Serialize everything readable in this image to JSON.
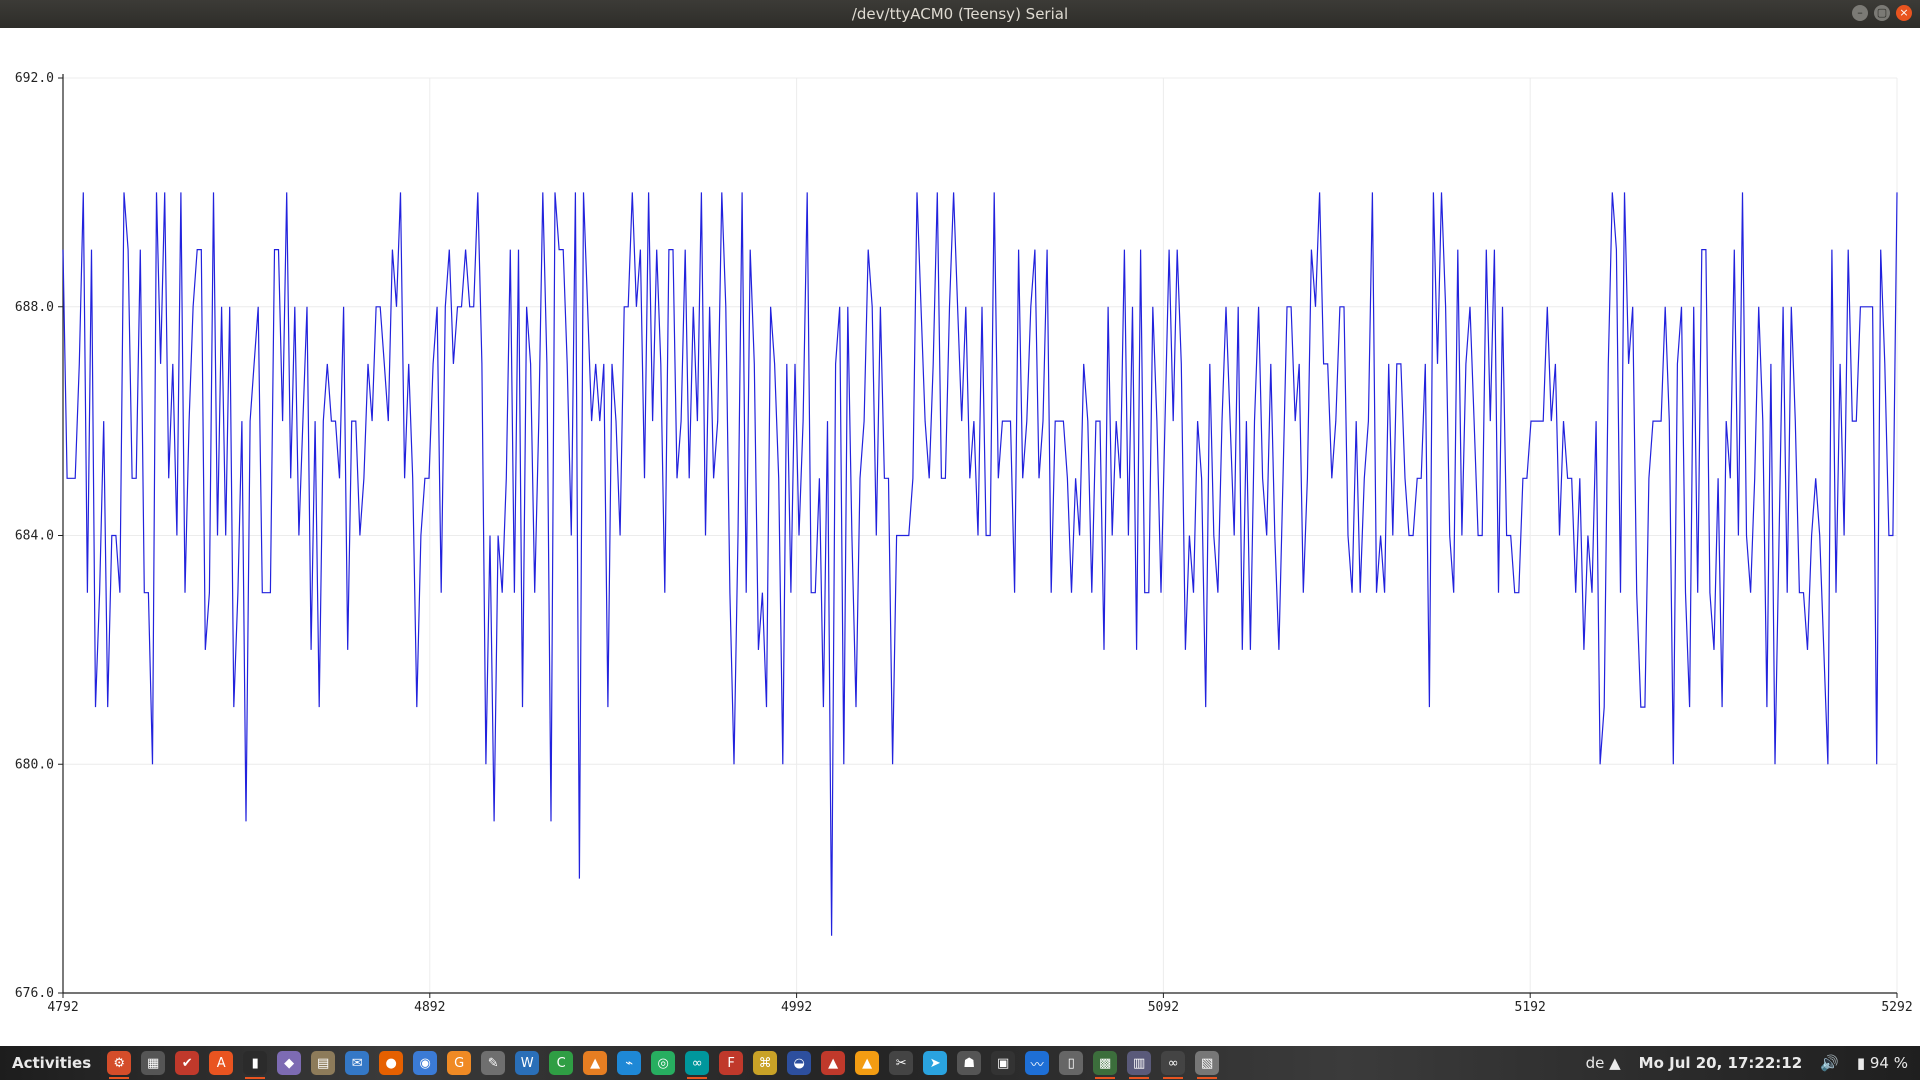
{
  "window": {
    "title": "/dev/ttyACM0 (Teensy) Serial",
    "controls": [
      "–",
      "▢",
      "×"
    ]
  },
  "chart_data": {
    "type": "line",
    "x_start": 4792,
    "x_end": 5292,
    "xlim": [
      4792,
      5292
    ],
    "ylim": [
      676.0,
      692.0
    ],
    "xticks": [
      "4792",
      "4892",
      "4992",
      "5092",
      "5192",
      "5292"
    ],
    "yticks": [
      "692.0",
      "688.0",
      "684.0",
      "680.0",
      "676.0"
    ],
    "grid": true,
    "line_color": "#2222dd",
    "values": [
      689,
      685,
      685,
      685,
      687,
      690,
      683,
      689,
      681,
      683,
      686,
      681,
      684,
      684,
      683,
      690,
      689,
      685,
      685,
      689,
      683,
      683,
      680,
      690,
      687,
      690,
      685,
      687,
      684,
      690,
      683,
      686,
      688,
      689,
      689,
      682,
      683,
      690,
      684,
      688,
      684,
      688,
      681,
      683,
      686,
      679,
      686,
      687,
      688,
      683,
      683,
      683,
      689,
      689,
      686,
      690,
      685,
      688,
      684,
      686,
      688,
      682,
      686,
      681,
      686,
      687,
      686,
      686,
      685,
      688,
      682,
      686,
      686,
      684,
      685,
      687,
      686,
      688,
      688,
      687,
      686,
      689,
      688,
      690,
      685,
      687,
      685,
      681,
      684,
      685,
      685,
      687,
      688,
      683,
      688,
      689,
      687,
      688,
      688,
      689,
      688,
      688,
      690,
      687,
      680,
      684,
      679,
      684,
      683,
      685,
      689,
      683,
      689,
      681,
      688,
      687,
      683,
      686,
      690,
      687,
      679,
      690,
      689,
      689,
      687,
      684,
      690,
      678,
      690,
      688,
      686,
      687,
      686,
      687,
      681,
      687,
      686,
      684,
      688,
      688,
      690,
      688,
      689,
      685,
      690,
      686,
      689,
      687,
      683,
      689,
      689,
      685,
      686,
      689,
      685,
      688,
      686,
      690,
      684,
      688,
      685,
      686,
      690,
      688,
      683,
      680,
      684,
      690,
      683,
      689,
      687,
      682,
      683,
      681,
      688,
      687,
      685,
      680,
      687,
      683,
      687,
      684,
      686,
      690,
      683,
      683,
      685,
      681,
      686,
      677,
      687,
      688,
      680,
      688,
      684,
      681,
      685,
      686,
      689,
      688,
      684,
      688,
      685,
      685,
      680,
      684,
      684,
      684,
      684,
      685,
      690,
      688,
      686,
      685,
      687,
      690,
      685,
      685,
      688,
      690,
      688,
      686,
      688,
      685,
      686,
      684,
      688,
      684,
      684,
      690,
      685,
      686,
      686,
      686,
      683,
      689,
      685,
      686,
      688,
      689,
      685,
      686,
      689,
      683,
      686,
      686,
      686,
      685,
      683,
      685,
      684,
      687,
      686,
      683,
      686,
      686,
      682,
      688,
      684,
      686,
      685,
      689,
      684,
      688,
      682,
      689,
      683,
      683,
      688,
      686,
      683,
      686,
      689,
      686,
      689,
      687,
      682,
      684,
      683,
      686,
      685,
      681,
      687,
      684,
      683,
      686,
      688,
      686,
      684,
      688,
      682,
      686,
      682,
      686,
      688,
      685,
      684,
      687,
      684,
      682,
      685,
      688,
      688,
      686,
      687,
      683,
      685,
      689,
      688,
      690,
      687,
      687,
      685,
      686,
      688,
      688,
      684,
      683,
      686,
      683,
      685,
      686,
      690,
      683,
      684,
      683,
      687,
      684,
      687,
      687,
      685,
      684,
      684,
      685,
      685,
      687,
      681,
      690,
      687,
      690,
      688,
      684,
      683,
      689,
      684,
      687,
      688,
      686,
      684,
      684,
      689,
      686,
      689,
      683,
      688,
      684,
      684,
      683,
      683,
      685,
      685,
      686,
      686,
      686,
      686,
      688,
      686,
      687,
      684,
      686,
      685,
      685,
      683,
      685,
      682,
      684,
      683,
      686,
      680,
      681,
      687,
      690,
      689,
      683,
      690,
      687,
      688,
      683,
      681,
      681,
      685,
      686,
      686,
      686,
      688,
      686,
      680,
      687,
      688,
      683,
      681,
      688,
      683,
      689,
      689,
      683,
      682,
      685,
      681,
      686,
      685,
      689,
      684,
      690,
      684,
      683,
      685,
      688,
      686,
      681,
      687,
      680,
      684,
      688,
      683,
      688,
      686,
      683,
      683,
      682,
      684,
      685,
      684,
      682,
      680,
      689,
      683,
      687,
      684,
      689,
      686,
      686,
      688,
      688,
      688,
      688,
      680,
      689,
      687,
      684,
      684,
      690
    ],
    "title": "",
    "xlabel": "",
    "ylabel": ""
  },
  "taskbar": {
    "activities": "Activities",
    "apps": [
      {
        "name": "settings-icon",
        "glyph": "⚙",
        "color": "#d44d2a",
        "running": true
      },
      {
        "name": "calculator-icon",
        "glyph": "▦",
        "color": "#555555",
        "running": false
      },
      {
        "name": "todo-icon",
        "glyph": "✔",
        "color": "#c0392b",
        "running": false
      },
      {
        "name": "software-icon",
        "glyph": "A",
        "color": "#e95420",
        "running": false
      },
      {
        "name": "terminal-icon",
        "glyph": "▮",
        "color": "#2b2b2b",
        "running": true
      },
      {
        "name": "crystal-icon",
        "glyph": "◆",
        "color": "#7d6bb3",
        "running": false
      },
      {
        "name": "files-icon",
        "glyph": "▤",
        "color": "#8d7b5a",
        "running": false
      },
      {
        "name": "mail-icon",
        "glyph": "✉",
        "color": "#3478c6",
        "running": false
      },
      {
        "name": "firefox-icon",
        "glyph": "●",
        "color": "#e66000",
        "running": false
      },
      {
        "name": "chromium-icon",
        "glyph": "◉",
        "color": "#3b7bd6",
        "running": false
      },
      {
        "name": "sync-icon",
        "glyph": "G",
        "color": "#f08a24",
        "running": false
      },
      {
        "name": "editor-icon",
        "glyph": "✎",
        "color": "#6f6f6f",
        "running": false
      },
      {
        "name": "writer-icon",
        "glyph": "W",
        "color": "#2a6fb8",
        "running": false
      },
      {
        "name": "calc-icon",
        "glyph": "C",
        "color": "#2f9e44",
        "running": false
      },
      {
        "name": "blocks-icon",
        "glyph": "▲",
        "color": "#e67e22",
        "running": false
      },
      {
        "name": "vscode-icon",
        "glyph": "⌁",
        "color": "#1e88d6",
        "running": false
      },
      {
        "name": "chat-icon",
        "glyph": "◎",
        "color": "#27ae60",
        "running": false
      },
      {
        "name": "arduino-icon",
        "glyph": "∞",
        "color": "#00979c",
        "running": true
      },
      {
        "name": "freecad-icon",
        "glyph": "F",
        "color": "#c0392b",
        "running": false
      },
      {
        "name": "diagram-icon",
        "glyph": "⌘",
        "color": "#c9a227",
        "running": false
      },
      {
        "name": "vpn-icon",
        "glyph": "◒",
        "color": "#2d4f9e",
        "running": false
      },
      {
        "name": "anki-icon",
        "glyph": "▲",
        "color": "#c0392b",
        "running": false
      },
      {
        "name": "vlc-icon",
        "glyph": "▲",
        "color": "#f39c12",
        "running": false
      },
      {
        "name": "clipper-icon",
        "glyph": "✂",
        "color": "#444444",
        "running": false
      },
      {
        "name": "telegram-icon",
        "glyph": "➤",
        "color": "#2aa3df",
        "running": false
      },
      {
        "name": "robot-icon",
        "glyph": "☗",
        "color": "#555555",
        "running": false
      },
      {
        "name": "monitor-icon",
        "glyph": "▣",
        "color": "#333333",
        "running": false
      },
      {
        "name": "pulse-icon",
        "glyph": "〰",
        "color": "#1e6fd6",
        "running": false
      },
      {
        "name": "phone-icon",
        "glyph": "▯",
        "color": "#666666",
        "running": false
      },
      {
        "name": "kicad-icon",
        "glyph": "▩",
        "color": "#3c6e3c",
        "running": true
      },
      {
        "name": "pcb-icon",
        "glyph": "▥",
        "color": "#5a5a7a",
        "running": true
      },
      {
        "name": "glasses-icon",
        "glyph": "∞",
        "color": "#444444",
        "running": true
      },
      {
        "name": "notes-icon",
        "glyph": "▧",
        "color": "#777777",
        "running": true
      }
    ],
    "keyboard_layout": "de",
    "clock": "Mo Jul 20, 17:22:12",
    "battery": "94 %"
  }
}
